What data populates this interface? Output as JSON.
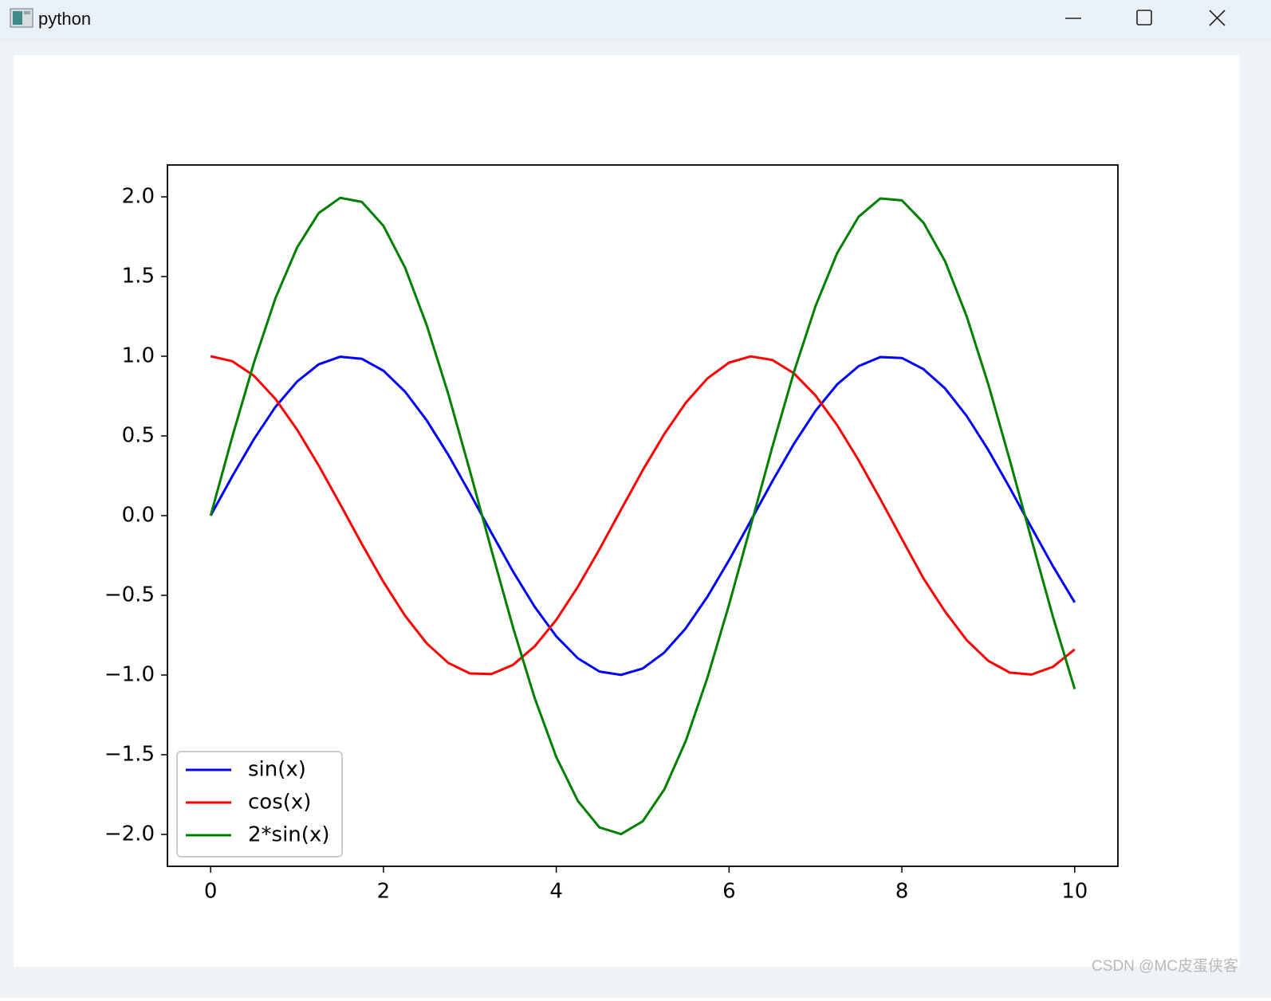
{
  "window": {
    "title": "python"
  },
  "chart_data": {
    "type": "line",
    "x": [
      0,
      0.25,
      0.5,
      0.75,
      1,
      1.25,
      1.5,
      1.75,
      2,
      2.25,
      2.5,
      2.75,
      3,
      3.25,
      3.5,
      3.75,
      4,
      4.25,
      4.5,
      4.75,
      5,
      5.25,
      5.5,
      5.75,
      6,
      6.25,
      6.5,
      6.75,
      7,
      7.25,
      7.5,
      7.75,
      8,
      8.25,
      8.5,
      8.75,
      9,
      9.25,
      9.5,
      9.75,
      10
    ],
    "series": [
      {
        "name": "sin(x)",
        "color": "#0000ff",
        "values": [
          0,
          0.247,
          0.479,
          0.682,
          0.841,
          0.949,
          0.997,
          0.984,
          0.909,
          0.778,
          0.598,
          0.382,
          0.141,
          -0.108,
          -0.351,
          -0.572,
          -0.757,
          -0.895,
          -0.978,
          -0.999,
          -0.959,
          -0.859,
          -0.706,
          -0.508,
          -0.279,
          -0.033,
          0.215,
          0.45,
          0.657,
          0.823,
          0.938,
          0.995,
          0.989,
          0.919,
          0.798,
          0.625,
          0.412,
          0.173,
          -0.075,
          -0.319,
          -0.544
        ]
      },
      {
        "name": "cos(x)",
        "color": "#ff0000",
        "values": [
          1,
          0.969,
          0.878,
          0.732,
          0.54,
          0.315,
          0.071,
          -0.178,
          -0.416,
          -0.628,
          -0.801,
          -0.924,
          -0.99,
          -0.994,
          -0.936,
          -0.82,
          -0.654,
          -0.446,
          -0.211,
          0.038,
          0.284,
          0.512,
          0.709,
          0.861,
          0.96,
          0.999,
          0.977,
          0.893,
          0.754,
          0.568,
          0.347,
          0.104,
          -0.146,
          -0.394,
          -0.602,
          -0.781,
          -0.911,
          -0.985,
          -0.997,
          -0.948,
          -0.839
        ]
      },
      {
        "name": "2*sin(x)",
        "color": "#008000",
        "values": [
          0,
          0.494,
          0.958,
          1.364,
          1.682,
          1.898,
          1.994,
          1.968,
          1.818,
          1.556,
          1.196,
          0.764,
          0.282,
          -0.216,
          -0.702,
          -1.144,
          -1.514,
          -1.79,
          -1.956,
          -1.998,
          -1.918,
          -1.718,
          -1.412,
          -1.016,
          -0.558,
          -0.066,
          0.43,
          0.9,
          1.314,
          1.646,
          1.876,
          1.99,
          1.978,
          1.838,
          1.596,
          1.25,
          0.824,
          0.346,
          -0.15,
          -0.638,
          -1.088
        ]
      }
    ],
    "xlim": [
      -0.5,
      10.5
    ],
    "xticks": [
      0,
      2,
      4,
      6,
      8,
      10
    ],
    "ylim": [
      -2.2,
      2.2
    ],
    "yticks": [
      {
        "value": -2,
        "label": "−2.0"
      },
      {
        "value": -1.5,
        "label": "−1.5"
      },
      {
        "value": -1,
        "label": "−1.0"
      },
      {
        "value": -0.5,
        "label": "−0.5"
      },
      {
        "value": 0,
        "label": "0.0"
      },
      {
        "value": 0.5,
        "label": "0.5"
      },
      {
        "value": 1,
        "label": "1.0"
      },
      {
        "value": 1.5,
        "label": "1.5"
      },
      {
        "value": 2,
        "label": "2.0"
      }
    ],
    "grid": false,
    "legend": "lower left"
  },
  "watermark": "CSDN @MC皮蛋侠客"
}
